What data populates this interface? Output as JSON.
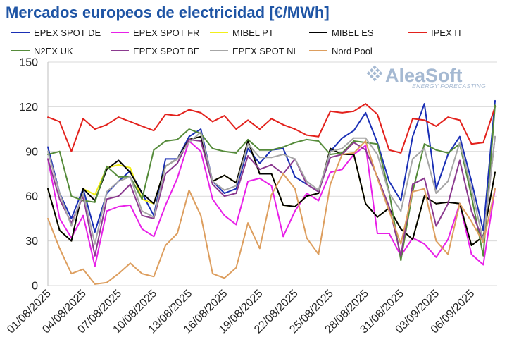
{
  "chart_data": {
    "type": "line",
    "title": "Mercados europeos de electricidad [€/MWh]",
    "ylim": [
      0,
      150
    ],
    "yticks": [
      0,
      30,
      60,
      90,
      120,
      150
    ],
    "grid": "horizontal",
    "legend_position": "top",
    "x": [
      "01/08/2025",
      "02/08/2025",
      "03/08/2025",
      "04/08/2025",
      "05/08/2025",
      "06/08/2025",
      "07/08/2025",
      "08/08/2025",
      "09/08/2025",
      "10/08/2025",
      "11/08/2025",
      "12/08/2025",
      "13/08/2025",
      "14/08/2025",
      "15/08/2025",
      "16/08/2025",
      "17/08/2025",
      "18/08/2025",
      "19/08/2025",
      "20/08/2025",
      "21/08/2025",
      "22/08/2025",
      "23/08/2025",
      "24/08/2025",
      "25/08/2025",
      "26/08/2025",
      "27/08/2025",
      "28/08/2025",
      "29/08/2025",
      "30/08/2025",
      "31/08/2025",
      "01/09/2025",
      "02/09/2025",
      "03/09/2025",
      "04/09/2025",
      "05/09/2025",
      "06/09/2025",
      "07/09/2025",
      "08/09/2025"
    ],
    "x_ticks": [
      "01/08/2025",
      "04/08/2025",
      "07/08/2025",
      "10/08/2025",
      "13/08/2025",
      "16/08/2025",
      "19/08/2025",
      "22/08/2025",
      "25/08/2025",
      "28/08/2025",
      "31/08/2025",
      "03/09/2025",
      "06/09/2025"
    ],
    "series": [
      {
        "name": "EPEX SPOT DE",
        "color": "#1a2fb5",
        "values": [
          93,
          62,
          45,
          65,
          36,
          62,
          70,
          77,
          62,
          47,
          85,
          85,
          100,
          105,
          70,
          62,
          65,
          92,
          82,
          91,
          92,
          73,
          68,
          63,
          90,
          99,
          104,
          116,
          96,
          70,
          57,
          100,
          122,
          65,
          88,
          100,
          70,
          37,
          124
        ]
      },
      {
        "name": "EPEX SPOT FR",
        "color": "#e820e8",
        "values": [
          85,
          45,
          32,
          47,
          13,
          50,
          53,
          54,
          38,
          33,
          54,
          72,
          97,
          90,
          58,
          47,
          41,
          70,
          72,
          67,
          33,
          50,
          62,
          57,
          76,
          78,
          88,
          94,
          35,
          35,
          20,
          32,
          28,
          19,
          31,
          55,
          21,
          14,
          65
        ]
      },
      {
        "name": "MIBEL PT",
        "color": "#f2ef1a",
        "values": [
          65,
          37,
          30,
          65,
          61,
          79,
          81,
          79,
          58,
          55,
          80,
          85,
          98,
          100,
          70,
          74,
          69,
          97,
          75,
          75,
          54,
          53,
          60,
          62,
          92,
          88,
          88,
          55,
          46,
          52,
          38,
          31,
          60,
          55,
          56,
          55,
          27,
          33,
          76
        ]
      },
      {
        "name": "MIBEL ES",
        "color": "#000000",
        "values": [
          65,
          37,
          30,
          65,
          57,
          78,
          84,
          76,
          62,
          55,
          80,
          85,
          98,
          100,
          70,
          74,
          69,
          97,
          75,
          75,
          54,
          53,
          60,
          62,
          92,
          88,
          88,
          55,
          46,
          52,
          38,
          31,
          60,
          55,
          56,
          55,
          27,
          33,
          76
        ]
      },
      {
        "name": "IPEX IT",
        "color": "#e3211c",
        "values": [
          113,
          110,
          90,
          112,
          105,
          108,
          113,
          110,
          107,
          104,
          115,
          114,
          118,
          116,
          110,
          114,
          105,
          111,
          105,
          112,
          108,
          105,
          101,
          100,
          117,
          116,
          117,
          122,
          115,
          91,
          89,
          112,
          111,
          107,
          113,
          111,
          95,
          96,
          120
        ]
      },
      {
        "name": "N2EX UK",
        "color": "#558b3a",
        "values": [
          88,
          90,
          60,
          57,
          56,
          80,
          73,
          73,
          58,
          91,
          97,
          98,
          105,
          102,
          92,
          90,
          89,
          98,
          91,
          91,
          93,
          96,
          98,
          97,
          88,
          89,
          97,
          96,
          95,
          63,
          17,
          63,
          95,
          91,
          89,
          95,
          60,
          20,
          121
        ]
      },
      {
        "name": "EPEX SPOT BE",
        "color": "#8b3a8f",
        "values": [
          85,
          58,
          42,
          60,
          20,
          58,
          60,
          68,
          47,
          45,
          75,
          82,
          98,
          97,
          68,
          60,
          62,
          87,
          78,
          81,
          75,
          85,
          68,
          63,
          86,
          88,
          96,
          91,
          73,
          53,
          20,
          68,
          72,
          40,
          55,
          84,
          50,
          30,
          100
        ]
      },
      {
        "name": "EPEX SPOT NL",
        "color": "#a6a6a6",
        "values": [
          90,
          62,
          40,
          62,
          28,
          63,
          70,
          73,
          50,
          46,
          80,
          85,
          96,
          103,
          70,
          64,
          67,
          95,
          86,
          86,
          88,
          85,
          70,
          64,
          90,
          92,
          99,
          99,
          88,
          62,
          50,
          85,
          92,
          62,
          70,
          96,
          65,
          30,
          100
        ]
      },
      {
        "name": "Nord Pool",
        "color": "#dd9e5e",
        "values": [
          45,
          25,
          8,
          11,
          1,
          2,
          8,
          15,
          8,
          6,
          27,
          35,
          64,
          47,
          8,
          5,
          12,
          42,
          25,
          61,
          75,
          65,
          32,
          21,
          68,
          88,
          89,
          97,
          72,
          50,
          28,
          63,
          65,
          30,
          21,
          55,
          43,
          29,
          65
        ]
      }
    ]
  },
  "watermark": {
    "brand": "AleaSoft",
    "tagline": "ENERGY FORECASTING",
    "color": "#a5b9d2"
  }
}
